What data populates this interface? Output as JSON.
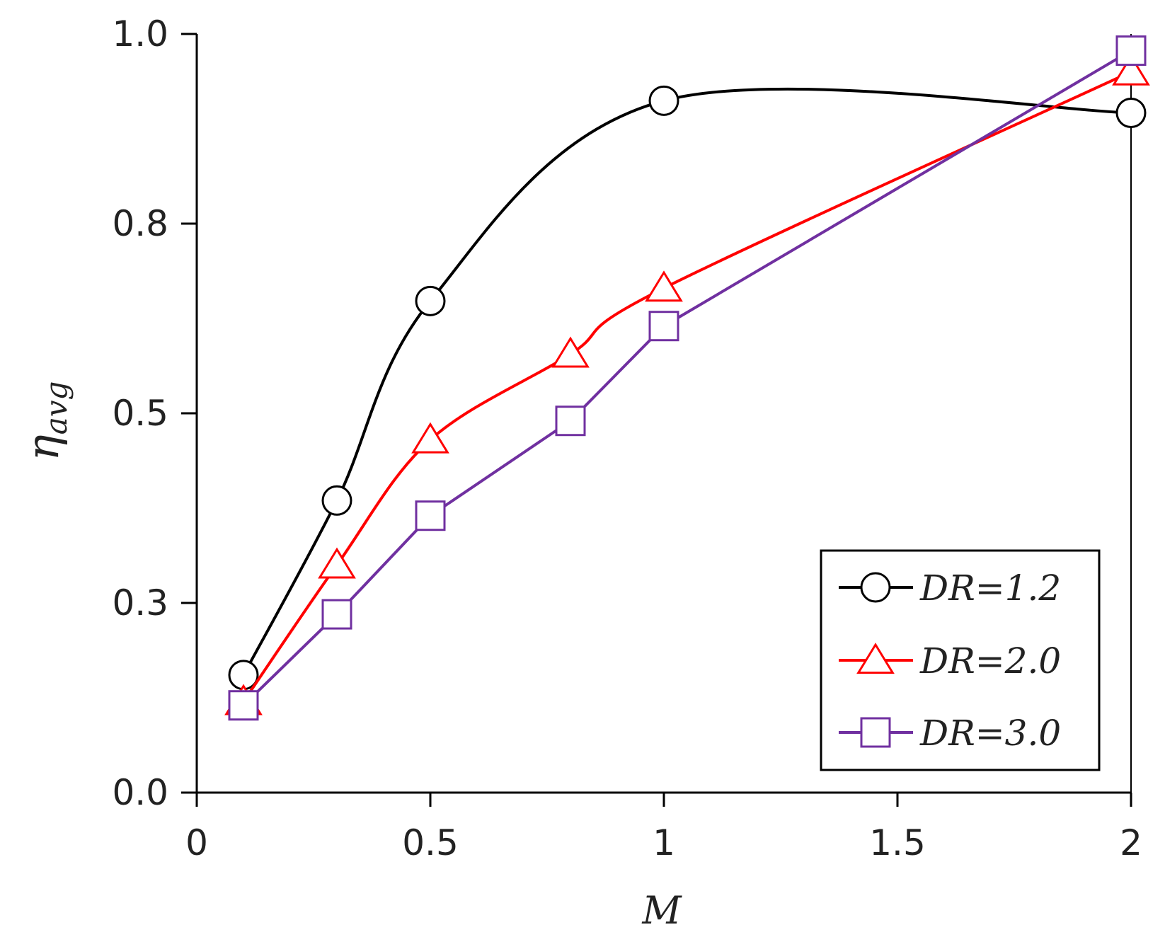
{
  "chart_data": {
    "type": "line",
    "title": "",
    "xlabel": "M",
    "ylabel_main": "η",
    "ylabel_sub": "avg",
    "xlim": [
      0,
      2
    ],
    "ylim": [
      0,
      1
    ],
    "x_ticks": [
      "0",
      "0.5",
      "1",
      "1.5",
      "2"
    ],
    "y_ticks": [
      "0.0",
      "0.3",
      "0.5",
      "0.8",
      "1.0"
    ],
    "x_tick_values": [
      0,
      0.5,
      1,
      1.5,
      2
    ],
    "y_tick_values": [
      0,
      0.25,
      0.5,
      0.75,
      1.0
    ],
    "legend_position": "bottom-right",
    "series": [
      {
        "name": "DR=1.2",
        "color": "#000000",
        "marker": "circle",
        "smooth": true,
        "x": [
          0.1,
          0.3,
          0.5,
          1.0,
          2.0
        ],
        "y": [
          0.155,
          0.385,
          0.648,
          0.912,
          0.896
        ]
      },
      {
        "name": "DR=2.0",
        "color": "#ff0000",
        "marker": "triangle",
        "smooth": true,
        "x": [
          0.1,
          0.3,
          0.5,
          0.8,
          1.0,
          2.0
        ],
        "y": [
          0.12,
          0.3,
          0.465,
          0.578,
          0.665,
          0.95
        ]
      },
      {
        "name": "DR=3.0",
        "color": "#7030a0",
        "marker": "square",
        "smooth": false,
        "x": [
          0.1,
          0.3,
          0.5,
          0.8,
          1.0,
          2.0
        ],
        "y": [
          0.115,
          0.235,
          0.365,
          0.49,
          0.615,
          0.978
        ]
      }
    ]
  }
}
